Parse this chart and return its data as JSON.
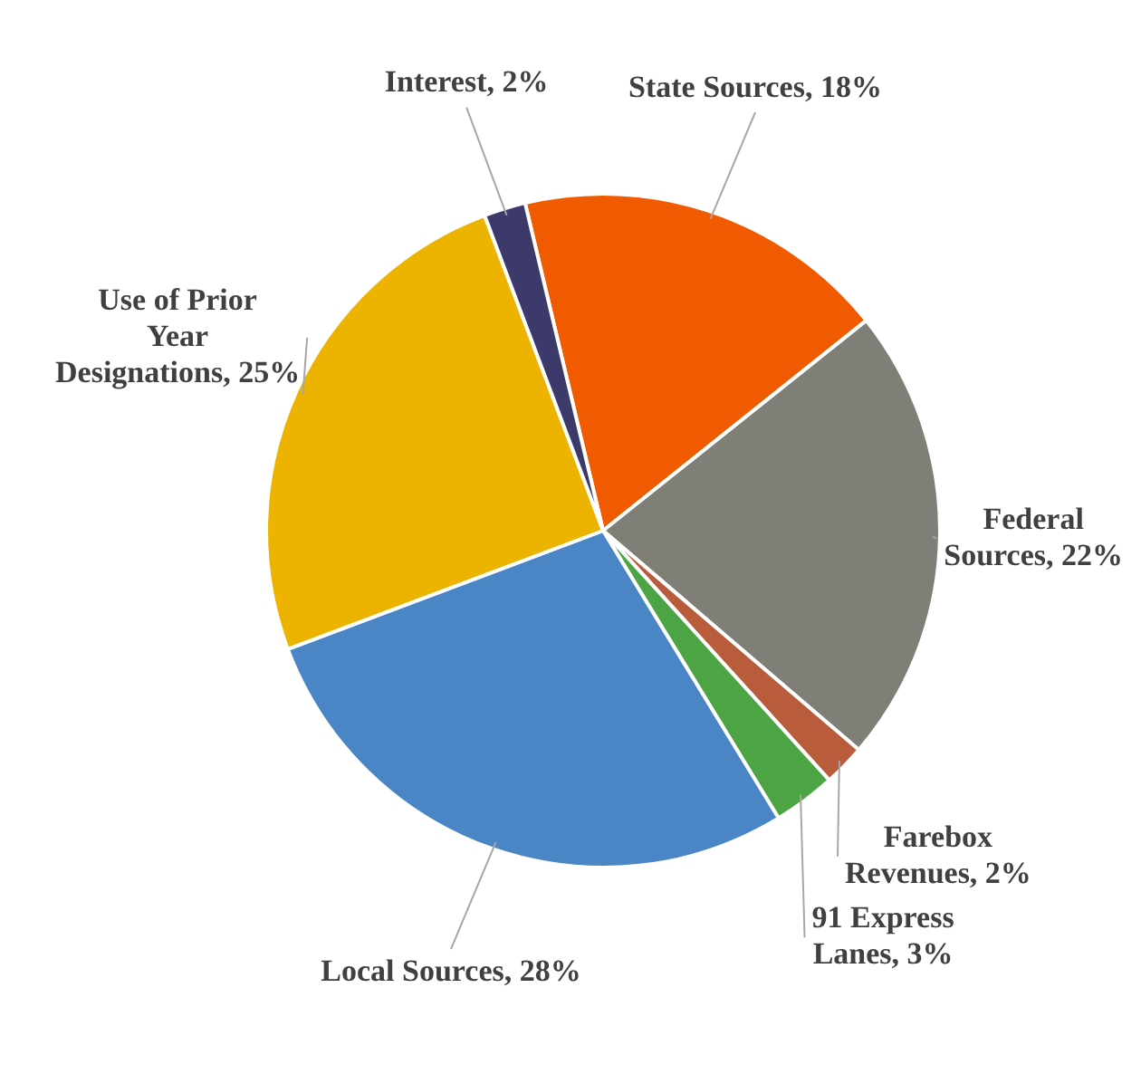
{
  "chart_data": {
    "type": "pie",
    "categories": [
      "State Sources",
      "Federal Sources",
      "Farebox Revenues",
      "91 Express Lanes",
      "Local Sources",
      "Use of Prior Year Designations",
      "Interest"
    ],
    "values": [
      18,
      22,
      2,
      3,
      28,
      25,
      2
    ],
    "value_labels": [
      "18%",
      "22%",
      "2%",
      "3%",
      "28%",
      "25%",
      "2%"
    ],
    "colors": [
      "#f05a00",
      "#7f7f78",
      "#b85c3c",
      "#4ca444",
      "#4a86c6",
      "#ecb400",
      "#3b3a6b"
    ],
    "legend": false
  }
}
